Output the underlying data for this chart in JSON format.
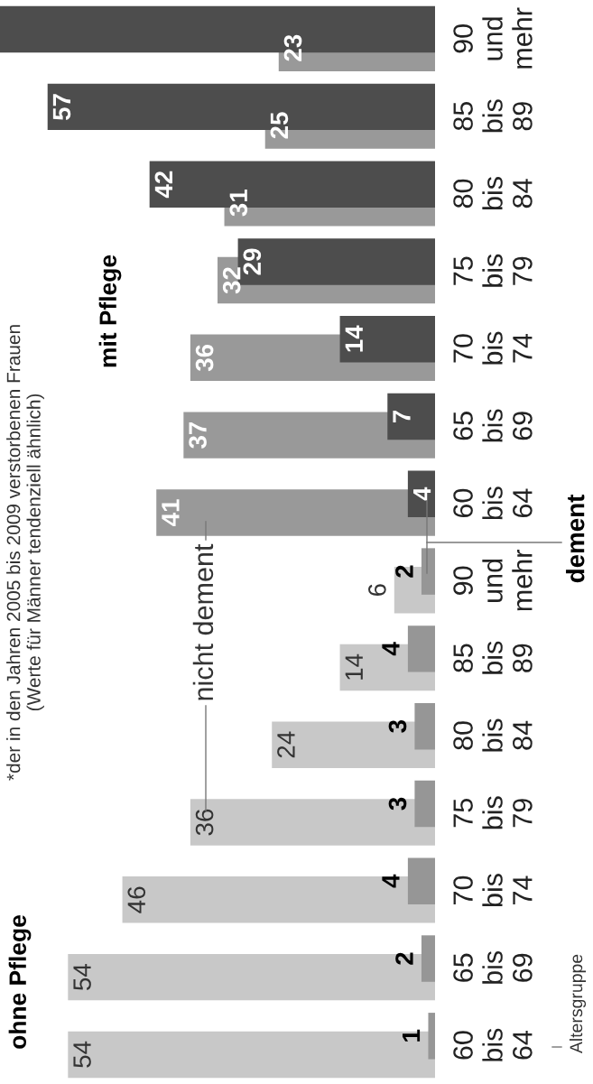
{
  "chart_data": {
    "type": "bar",
    "orientation": "horizontal",
    "subtitle": "*der in den Jahren 2005 bis 2009 verstorbenen Frauen\n(Werte für Männer tendenziell ähnlich)",
    "ylabel": "Altersgruppe",
    "annotations": [
      "ohne Pflege",
      "mit Pflege"
    ],
    "categories": [
      "90 und mehr",
      "85 bis 89",
      "80 bis 84",
      "75 bis 79",
      "70 bis 74",
      "65 bis 69",
      "60 bis 64",
      "90 und mehr",
      "85 bis 89",
      "80 bis 84",
      "75 bis 79",
      "70 bis 74",
      "65 bis 69",
      "60 bis 64"
    ],
    "series": [
      {
        "name": "nicht dement",
        "colors": [
          "#999999",
          "#999999",
          "#999999",
          "#999999",
          "#999999",
          "#999999",
          "#999999",
          "#c8c8c8",
          "#c8c8c8",
          "#c8c8c8",
          "#c8c8c8",
          "#c8c8c8",
          "#c8c8c8",
          "#c8c8c8"
        ],
        "values": [
          23,
          25,
          31,
          32,
          36,
          37,
          41,
          6,
          14,
          24,
          36,
          46,
          54,
          54
        ],
        "value_labels": [
          "23",
          "25",
          "31",
          "32",
          "36",
          "37",
          "41",
          "6",
          "14",
          "24",
          "36",
          "46",
          "54",
          "54"
        ]
      },
      {
        "name": "dement",
        "colors": [
          "#4d4d4d",
          "#4d4d4d",
          "#4d4d4d",
          "#4d4d4d",
          "#4d4d4d",
          "#4d4d4d",
          "#4d4d4d",
          "#969696",
          "#969696",
          "#969696",
          "#969696",
          "#969696",
          "#969696",
          "#969696"
        ],
        "values": [
          64,
          57,
          42,
          29,
          14,
          7,
          4,
          2,
          4,
          3,
          3,
          4,
          2,
          1
        ],
        "value_labels": [
          null,
          "57",
          "42",
          "29",
          "14",
          "7",
          "4",
          "2",
          "4",
          "3",
          "3",
          "4",
          "2",
          "1"
        ]
      }
    ],
    "xlim": [
      64,
      0
    ],
    "tick_labels": "y",
    "grid": false,
    "legend": false
  }
}
